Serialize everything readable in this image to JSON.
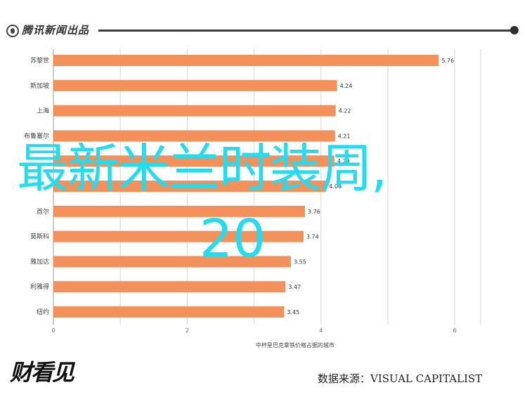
{
  "header": {
    "brand": "腾讯新闻出品",
    "brand_icon": "tencent-news-logo-icon"
  },
  "overlay": {
    "title": "最新米兰时装周,",
    "subtitle": "20"
  },
  "chart_data": {
    "type": "bar",
    "orientation": "horizontal",
    "bar_color": "#f4915a",
    "categories": [
      "苏黎世",
      "新加坡",
      "上海",
      "布鲁塞尔",
      "",
      "",
      "首尔",
      "莫斯科",
      "雅加达",
      "利雅得",
      "纽约"
    ],
    "values": [
      5.76,
      4.24,
      4.22,
      4.21,
      4.2,
      4.08,
      3.76,
      3.74,
      3.55,
      3.47,
      3.45
    ],
    "value_labels": [
      "5.76",
      "4.24",
      "4.22",
      "4.21",
      "4.20",
      "4.08",
      "3.76",
      "3.74",
      "3.55",
      "3.47",
      "3.45"
    ],
    "xlim": [
      0,
      6.4
    ],
    "xticks": [
      "0",
      "2",
      "4",
      "6"
    ],
    "xtick_values": [
      0,
      2,
      4,
      6
    ],
    "xlabel": "中杯星巴克拿铁价格占据的城市",
    "grid": true
  },
  "footer": {
    "logo": "财看见",
    "source": "数据来源：VISUAL CAPITALIST"
  }
}
